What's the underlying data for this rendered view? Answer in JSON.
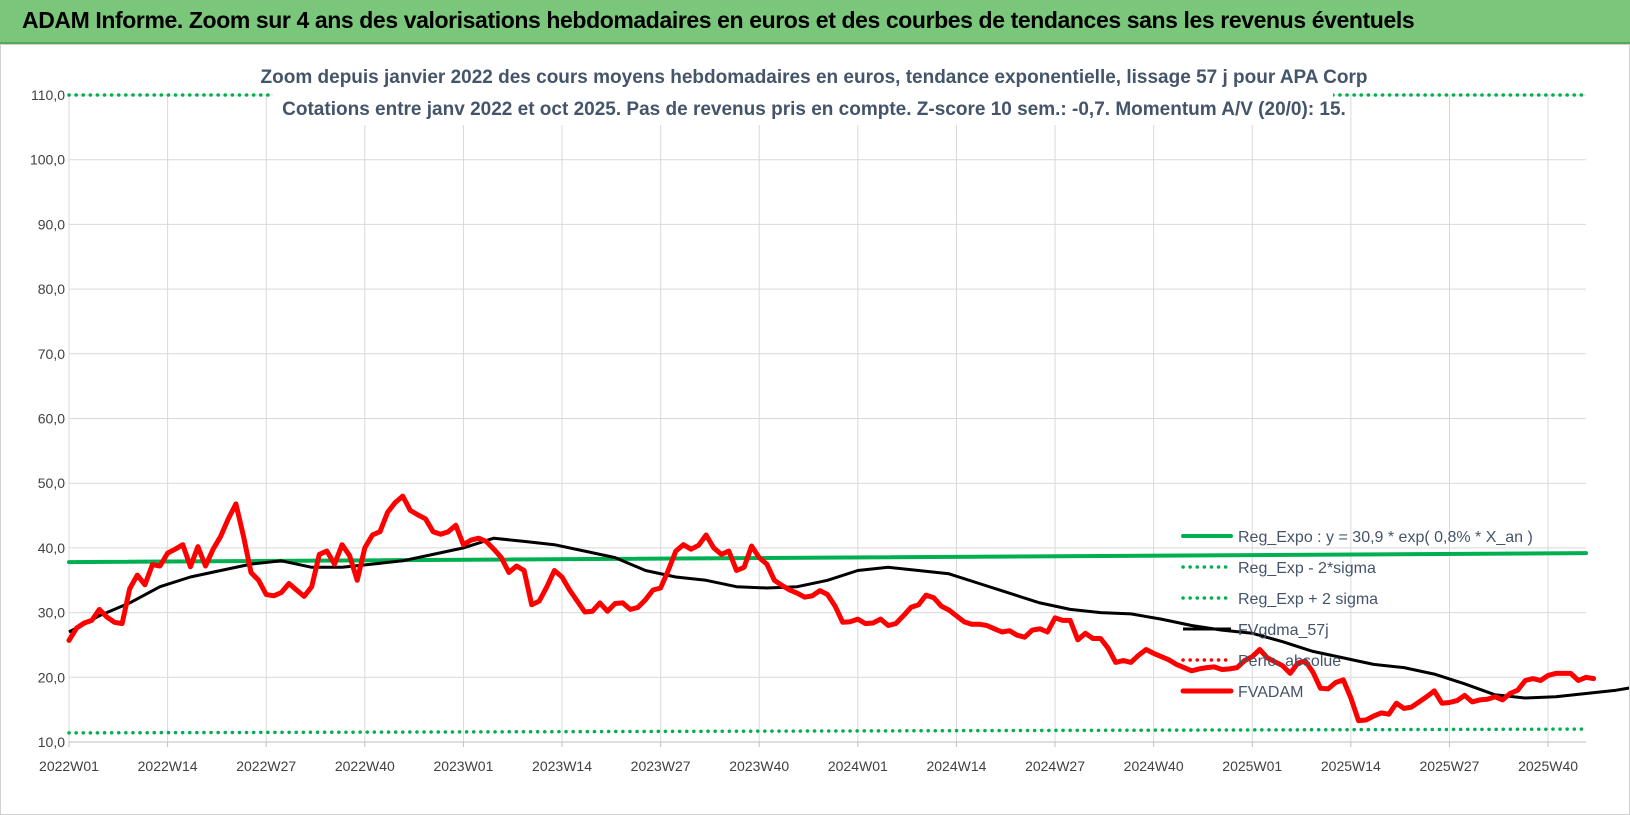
{
  "banner": {
    "title": "ADAM Informe. Zoom sur 4 ans des valorisations hebdomadaires en euros et des courbes de tendances sans les revenus éventuels"
  },
  "chart_data": {
    "type": "line",
    "title": "Zoom depuis janvier 2022 des cours moyens hebdomadaires en euros, tendance exponentielle, lissage 57 j pour APA Corp",
    "subtitle": "Cotations entre janv 2022 et oct 2025. Pas de revenus pris en compte. Z-score 10 sem.: -0,7. Momentum A/V (20/0): 15.",
    "xlabel": "",
    "ylabel": "",
    "ylim": [
      10,
      110
    ],
    "yticks": [
      "10,0",
      "20,0",
      "30,0",
      "40,0",
      "50,0",
      "60,0",
      "70,0",
      "80,0",
      "90,0",
      "100,0",
      "110,0"
    ],
    "xticks": [
      "2022W01",
      "2022W14",
      "2022W27",
      "2022W40",
      "2023W01",
      "2023W14",
      "2023W27",
      "2023W40",
      "2024W01",
      "2024W14",
      "2024W27",
      "2024W40",
      "2025W01",
      "2025W14",
      "2025W27",
      "2025W40"
    ],
    "x_range_weeks": [
      0,
      200
    ],
    "grid": true,
    "legend_position": "bottom-right",
    "series": [
      {
        "name": "Reg_Expo : y = 30,9 * exp( 0,8% * X_an )",
        "color": "#00b050",
        "style": "solid-thick",
        "points": [
          [
            0,
            37.8
          ],
          [
            200,
            39.2
          ]
        ]
      },
      {
        "name": "Reg_Exp - 2*sigma",
        "color": "#00b050",
        "style": "dotted",
        "points": [
          [
            0,
            11.4
          ],
          [
            200,
            12.0
          ]
        ]
      },
      {
        "name": "Reg_Exp + 2 sigma",
        "color": "#00b050",
        "style": "dotted",
        "points": [
          [
            0,
            110.0
          ],
          [
            200,
            110.0
          ]
        ]
      },
      {
        "name": "FVgdma_57j",
        "color": "#000000",
        "style": "solid",
        "points": [
          [
            0,
            27.0
          ],
          [
            4,
            29.5
          ],
          [
            8,
            31.5
          ],
          [
            12,
            34.0
          ],
          [
            16,
            35.5
          ],
          [
            20,
            36.5
          ],
          [
            24,
            37.5
          ],
          [
            28,
            38.0
          ],
          [
            32,
            37.0
          ],
          [
            36,
            37.0
          ],
          [
            40,
            37.5
          ],
          [
            44,
            38.0
          ],
          [
            48,
            39.0
          ],
          [
            52,
            40.0
          ],
          [
            56,
            41.5
          ],
          [
            60,
            41.0
          ],
          [
            64,
            40.5
          ],
          [
            68,
            39.5
          ],
          [
            72,
            38.5
          ],
          [
            76,
            36.5
          ],
          [
            80,
            35.5
          ],
          [
            84,
            35.0
          ],
          [
            88,
            34.0
          ],
          [
            92,
            33.8
          ],
          [
            96,
            34.0
          ],
          [
            100,
            35.0
          ],
          [
            104,
            36.5
          ],
          [
            108,
            37.0
          ],
          [
            112,
            36.5
          ],
          [
            116,
            36.0
          ],
          [
            120,
            34.5
          ],
          [
            124,
            33.0
          ],
          [
            128,
            31.5
          ],
          [
            132,
            30.5
          ],
          [
            136,
            30.0
          ],
          [
            140,
            29.8
          ],
          [
            144,
            29.0
          ],
          [
            148,
            28.0
          ],
          [
            152,
            27.3
          ],
          [
            156,
            26.8
          ],
          [
            160,
            25.5
          ],
          [
            164,
            24.0
          ],
          [
            168,
            23.0
          ],
          [
            172,
            22.0
          ],
          [
            176,
            21.5
          ],
          [
            180,
            20.5
          ],
          [
            184,
            19.0
          ],
          [
            188,
            17.3
          ],
          [
            192,
            16.8
          ],
          [
            196,
            17.0
          ],
          [
            200,
            17.5
          ],
          [
            204,
            18.0
          ],
          [
            208,
            18.8
          ],
          [
            212,
            19.5
          ],
          [
            216,
            19.5
          ]
        ]
      },
      {
        "name": "Perfo. absolue",
        "color": "#ff0000",
        "style": "dotted",
        "points": []
      },
      {
        "name": "FVADAM",
        "color": "#ff0000",
        "style": "solid-thick",
        "points": [
          [
            0,
            25.7
          ],
          [
            1,
            27.6
          ],
          [
            2,
            28.4
          ],
          [
            3,
            28.8
          ],
          [
            4,
            30.5
          ],
          [
            5,
            29.3
          ],
          [
            6,
            28.5
          ],
          [
            7,
            28.3
          ],
          [
            8,
            33.7
          ],
          [
            9,
            35.8
          ],
          [
            10,
            34.3
          ],
          [
            11,
            37.4
          ],
          [
            12,
            37.2
          ],
          [
            13,
            39.2
          ],
          [
            14,
            39.8
          ],
          [
            15,
            40.5
          ],
          [
            16,
            37.1
          ],
          [
            17,
            40.2
          ],
          [
            18,
            37.2
          ],
          [
            19,
            39.8
          ],
          [
            20,
            41.8
          ],
          [
            21,
            44.5
          ],
          [
            22,
            46.8
          ],
          [
            23,
            41.8
          ],
          [
            24,
            36.2
          ],
          [
            25,
            35.0
          ],
          [
            26,
            32.8
          ],
          [
            27,
            32.6
          ],
          [
            28,
            33.1
          ],
          [
            29,
            34.5
          ],
          [
            30,
            33.5
          ],
          [
            31,
            32.5
          ],
          [
            32,
            34.0
          ],
          [
            33,
            39.0
          ],
          [
            34,
            39.5
          ],
          [
            35,
            37.5
          ],
          [
            36,
            40.5
          ],
          [
            37,
            38.8
          ],
          [
            38,
            35.0
          ],
          [
            39,
            40.0
          ],
          [
            40,
            42.0
          ],
          [
            41,
            42.5
          ],
          [
            42,
            45.5
          ],
          [
            43,
            47.0
          ],
          [
            44,
            48.0
          ],
          [
            45,
            45.8
          ],
          [
            46,
            45.1
          ],
          [
            47,
            44.5
          ],
          [
            48,
            42.5
          ],
          [
            49,
            42.1
          ],
          [
            50,
            42.5
          ],
          [
            51,
            43.5
          ],
          [
            52,
            40.5
          ],
          [
            53,
            41.2
          ],
          [
            54,
            41.5
          ],
          [
            55,
            41.0
          ],
          [
            56,
            39.8
          ],
          [
            57,
            38.5
          ],
          [
            58,
            36.2
          ],
          [
            59,
            37.2
          ],
          [
            60,
            36.5
          ],
          [
            61,
            31.2
          ],
          [
            62,
            31.8
          ],
          [
            63,
            34.0
          ],
          [
            64,
            36.5
          ],
          [
            65,
            35.5
          ],
          [
            66,
            33.5
          ],
          [
            67,
            31.8
          ],
          [
            68,
            30.1
          ],
          [
            69,
            30.2
          ],
          [
            70,
            31.5
          ],
          [
            71,
            30.2
          ],
          [
            72,
            31.4
          ],
          [
            73,
            31.5
          ],
          [
            74,
            30.5
          ],
          [
            75,
            30.8
          ],
          [
            76,
            32.0
          ],
          [
            77,
            33.5
          ],
          [
            78,
            33.8
          ],
          [
            79,
            36.5
          ],
          [
            80,
            39.5
          ],
          [
            81,
            40.5
          ],
          [
            82,
            39.8
          ],
          [
            83,
            40.4
          ],
          [
            84,
            42.0
          ],
          [
            85,
            40.0
          ],
          [
            86,
            39.0
          ],
          [
            87,
            39.5
          ],
          [
            88,
            36.5
          ],
          [
            89,
            37.0
          ],
          [
            90,
            40.3
          ],
          [
            91,
            38.5
          ],
          [
            92,
            37.5
          ],
          [
            93,
            35.0
          ],
          [
            94,
            34.2
          ],
          [
            95,
            33.5
          ],
          [
            96,
            33.0
          ],
          [
            97,
            32.4
          ],
          [
            98,
            32.6
          ],
          [
            99,
            33.4
          ],
          [
            100,
            32.8
          ],
          [
            101,
            31.0
          ],
          [
            102,
            28.5
          ],
          [
            103,
            28.6
          ],
          [
            104,
            29.0
          ],
          [
            105,
            28.3
          ],
          [
            106,
            28.4
          ],
          [
            107,
            29.0
          ],
          [
            108,
            28.0
          ],
          [
            109,
            28.3
          ],
          [
            110,
            29.5
          ],
          [
            111,
            30.8
          ],
          [
            112,
            31.2
          ],
          [
            113,
            32.7
          ],
          [
            114,
            32.3
          ],
          [
            115,
            31.0
          ],
          [
            116,
            30.4
          ],
          [
            117,
            29.5
          ],
          [
            118,
            28.6
          ],
          [
            119,
            28.2
          ],
          [
            120,
            28.2
          ],
          [
            121,
            28.0
          ],
          [
            122,
            27.5
          ],
          [
            123,
            27.0
          ],
          [
            124,
            27.2
          ],
          [
            125,
            26.5
          ],
          [
            126,
            26.2
          ],
          [
            127,
            27.3
          ],
          [
            128,
            27.5
          ],
          [
            129,
            27.0
          ],
          [
            130,
            29.2
          ],
          [
            131,
            28.8
          ],
          [
            132,
            28.8
          ],
          [
            133,
            25.8
          ],
          [
            134,
            26.8
          ],
          [
            135,
            26.0
          ],
          [
            136,
            26.0
          ],
          [
            137,
            24.5
          ],
          [
            138,
            22.3
          ],
          [
            139,
            22.6
          ],
          [
            140,
            22.3
          ],
          [
            141,
            23.4
          ],
          [
            142,
            24.3
          ],
          [
            143,
            23.7
          ],
          [
            144,
            23.2
          ],
          [
            145,
            22.7
          ],
          [
            146,
            22.0
          ],
          [
            147,
            21.5
          ],
          [
            148,
            21.0
          ],
          [
            149,
            21.3
          ],
          [
            150,
            21.5
          ],
          [
            151,
            21.6
          ],
          [
            152,
            21.2
          ],
          [
            153,
            21.3
          ],
          [
            154,
            21.5
          ],
          [
            155,
            22.6
          ],
          [
            156,
            23.2
          ],
          [
            157,
            24.3
          ],
          [
            158,
            23.0
          ],
          [
            159,
            22.4
          ],
          [
            160,
            21.8
          ],
          [
            161,
            20.6
          ],
          [
            162,
            22.2
          ],
          [
            163,
            22.5
          ],
          [
            164,
            20.8
          ],
          [
            165,
            18.3
          ],
          [
            166,
            18.2
          ],
          [
            167,
            19.2
          ],
          [
            168,
            19.6
          ],
          [
            169,
            16.8
          ],
          [
            170,
            13.3
          ],
          [
            171,
            13.4
          ],
          [
            172,
            14.0
          ],
          [
            173,
            14.5
          ],
          [
            174,
            14.3
          ],
          [
            175,
            16.0
          ],
          [
            176,
            15.2
          ],
          [
            177,
            15.4
          ],
          [
            178,
            16.2
          ],
          [
            179,
            17.0
          ],
          [
            180,
            17.9
          ],
          [
            181,
            16.0
          ],
          [
            182,
            16.1
          ],
          [
            183,
            16.4
          ],
          [
            184,
            17.2
          ],
          [
            185,
            16.2
          ],
          [
            186,
            16.5
          ],
          [
            187,
            16.6
          ],
          [
            188,
            17.0
          ],
          [
            189,
            16.5
          ],
          [
            190,
            17.5
          ],
          [
            191,
            18.0
          ],
          [
            192,
            19.5
          ],
          [
            193,
            19.8
          ],
          [
            194,
            19.5
          ],
          [
            195,
            20.3
          ],
          [
            196,
            20.6
          ],
          [
            197,
            20.6
          ],
          [
            198,
            20.6
          ],
          [
            199,
            19.5
          ],
          [
            200,
            20.0
          ],
          [
            201,
            19.8
          ]
        ]
      }
    ]
  }
}
